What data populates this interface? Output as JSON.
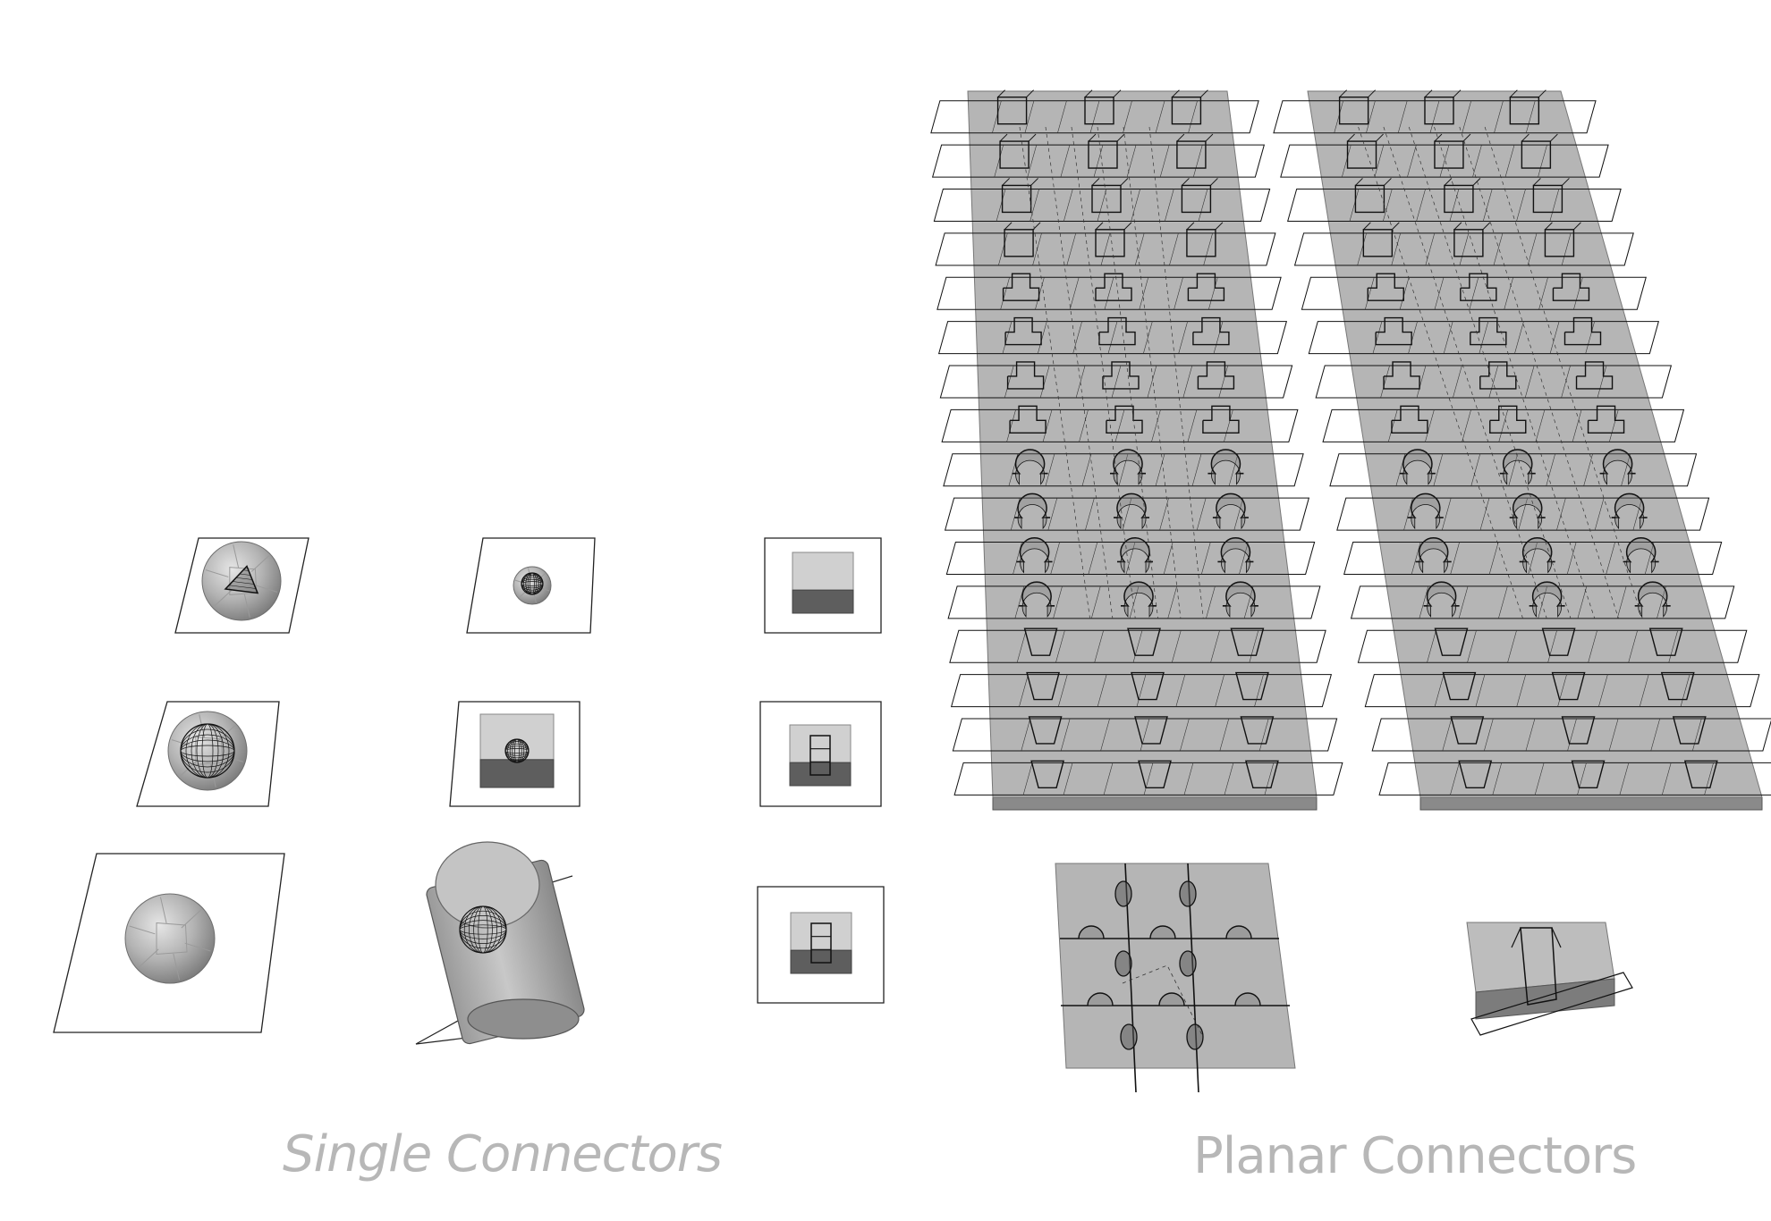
{
  "captions": {
    "single": "Single Connectors",
    "planar": "Planar Connectors"
  },
  "colors": {
    "background": "#ffffff",
    "caption": "#b7b7b7",
    "slab_fill": "#b5b5b5",
    "slab_edge": "#8a8a8a",
    "solid_light": "#d0d0d0",
    "solid_dark": "#5e5e5e",
    "wire": "#111111"
  },
  "groups": {
    "single_connectors": {
      "rows": 3,
      "columns": 3,
      "items": [
        {
          "shape": "sphere",
          "inner": "pyramid-wireframe"
        },
        {
          "shape": "small-sphere",
          "inner": "none"
        },
        {
          "shape": "cube",
          "inner": "none"
        },
        {
          "shape": "sphere",
          "inner": "sphere-wireframe"
        },
        {
          "shape": "cube",
          "inner": "sphere-wireframe"
        },
        {
          "shape": "cube",
          "inner": "box-wireframe"
        },
        {
          "shape": "sphere",
          "inner": "none"
        },
        {
          "shape": "cylinder",
          "inner": "sphere-wireframe"
        },
        {
          "shape": "cube",
          "inner": "box-wireframe"
        }
      ]
    },
    "planar_connectors": {
      "slabs": [
        {
          "rows": 16,
          "columns": 3,
          "connector_types": [
            "square-notch",
            "t-slot",
            "round-hook",
            "dovetail"
          ]
        },
        {
          "rows": 16,
          "columns": 3,
          "connector_types": [
            "box-notch",
            "t-slot",
            "round-hook",
            "dovetail"
          ]
        }
      ],
      "detail_pieces": [
        "hook-grid-panel",
        "box-slot-block"
      ]
    }
  }
}
